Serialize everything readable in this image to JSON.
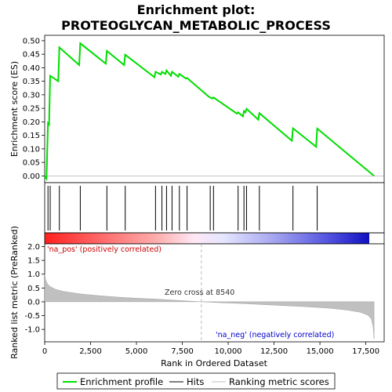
{
  "chart_data": {
    "title_line1": "Enrichment plot:",
    "title_line2": "PROTEOGLYCAN_METABOLIC_PROCESS",
    "top_panel": {
      "type": "line",
      "ylabel": "Enrichment score (ES)",
      "ylim": [
        -0.025,
        0.52
      ],
      "yticks": [
        "0.00",
        "0.05",
        "0.10",
        "0.15",
        "0.20",
        "0.25",
        "0.30",
        "0.35",
        "0.40",
        "0.45",
        "0.50"
      ],
      "line_color": "#00dd00",
      "es_points": [
        [
          0,
          0.0
        ],
        [
          100,
          -0.01
        ],
        [
          180,
          0.195
        ],
        [
          240,
          0.19
        ],
        [
          300,
          0.37
        ],
        [
          740,
          0.35
        ],
        [
          800,
          0.475
        ],
        [
          1880,
          0.41
        ],
        [
          1940,
          0.49
        ],
        [
          3330,
          0.415
        ],
        [
          3390,
          0.462
        ],
        [
          4330,
          0.41
        ],
        [
          4390,
          0.448
        ],
        [
          5980,
          0.365
        ],
        [
          6040,
          0.385
        ],
        [
          6330,
          0.375
        ],
        [
          6390,
          0.385
        ],
        [
          6580,
          0.377
        ],
        [
          6640,
          0.39
        ],
        [
          6880,
          0.37
        ],
        [
          6940,
          0.385
        ],
        [
          7280,
          0.367
        ],
        [
          7340,
          0.377
        ],
        [
          7700,
          0.36
        ],
        [
          7760,
          0.362
        ],
        [
          8960,
          0.292
        ],
        [
          9020,
          0.29
        ],
        [
          9140,
          0.286
        ],
        [
          9200,
          0.29
        ],
        [
          10480,
          0.23
        ],
        [
          10540,
          0.235
        ],
        [
          10800,
          0.22
        ],
        [
          10860,
          0.24
        ],
        [
          10940,
          0.235
        ],
        [
          11000,
          0.248
        ],
        [
          11640,
          0.208
        ],
        [
          11700,
          0.232
        ],
        [
          13470,
          0.13
        ],
        [
          13530,
          0.176
        ],
        [
          14790,
          0.108
        ],
        [
          14850,
          0.175
        ],
        [
          17950,
          0.0
        ]
      ]
    },
    "hits_panel": {
      "hit_positions": [
        180,
        300,
        800,
        1940,
        3390,
        4390,
        6040,
        6390,
        6640,
        6940,
        7340,
        7760,
        9020,
        9200,
        10540,
        10860,
        11000,
        11700,
        13530,
        14850
      ]
    },
    "bottom_panel": {
      "type": "area",
      "ylabel": "Ranked list metric (PreRanked)",
      "xlabel": "Rank in Ordered Dataset",
      "ylim": [
        -1.45,
        2.1
      ],
      "yticks": [
        "-1.0",
        "-0.5",
        "0.0",
        "0.5",
        "1.0",
        "1.5",
        "2.0"
      ],
      "xticks": [
        "0",
        "2,500",
        "5,000",
        "7,500",
        "10,000",
        "12,500",
        "15,000",
        "17,500"
      ],
      "xlim": [
        0,
        18500
      ],
      "n_genes": 17950,
      "zero_cross": 8540,
      "zero_cross_label": "Zero cross at 8540",
      "pos_label": "'na_pos' (positively correlated)",
      "neg_label": "'na_neg' (negatively correlated)",
      "pos_color": "#cc0000",
      "neg_color": "#0000cc",
      "metric_points": [
        [
          0,
          1.0
        ],
        [
          50,
          0.8
        ],
        [
          150,
          0.65
        ],
        [
          300,
          0.55
        ],
        [
          600,
          0.45
        ],
        [
          1000,
          0.38
        ],
        [
          2000,
          0.28
        ],
        [
          3000,
          0.22
        ],
        [
          4000,
          0.17
        ],
        [
          5000,
          0.13
        ],
        [
          6000,
          0.1
        ],
        [
          7000,
          0.06
        ],
        [
          8000,
          0.02
        ],
        [
          8540,
          0.0
        ],
        [
          9500,
          -0.03
        ],
        [
          11000,
          -0.07
        ],
        [
          12500,
          -0.12
        ],
        [
          14000,
          -0.17
        ],
        [
          15500,
          -0.23
        ],
        [
          16500,
          -0.3
        ],
        [
          17200,
          -0.38
        ],
        [
          17600,
          -0.48
        ],
        [
          17800,
          -0.62
        ],
        [
          17900,
          -0.9
        ],
        [
          17950,
          -1.35
        ]
      ]
    },
    "legend": {
      "items": [
        "Enrichment profile",
        "Hits",
        "Ranking metric scores"
      ]
    }
  }
}
